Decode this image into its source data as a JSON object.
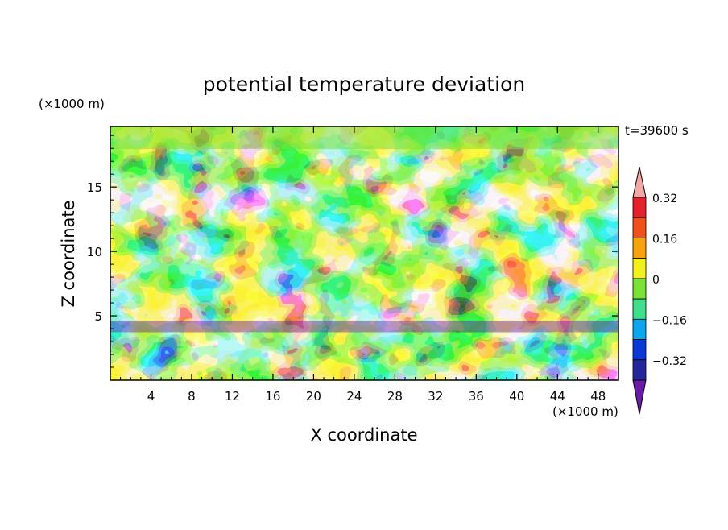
{
  "chart_data": {
    "type": "heatmap",
    "title": "potential temperature deviation",
    "xlabel": "X coordinate",
    "ylabel": "Z coordinate",
    "x_unit": "(×1000 m)",
    "y_unit": "(×1000 m)",
    "time_label": "t=39600 s",
    "xlim": [
      0,
      50
    ],
    "ylim": [
      0,
      19.7
    ],
    "x_ticks": [
      4,
      8,
      12,
      16,
      20,
      24,
      28,
      32,
      36,
      40,
      44,
      48
    ],
    "y_ticks": [
      5,
      10,
      15
    ],
    "colorbar": {
      "levels": [
        -0.4,
        -0.32,
        -0.24,
        -0.16,
        -0.08,
        0,
        0.08,
        0.16,
        0.24,
        0.32,
        0.4
      ],
      "labels": [
        "0.32",
        "0.16",
        "0",
        "−0.16",
        "−0.32"
      ],
      "label_values": [
        0.32,
        0.16,
        0,
        -0.16,
        -0.32
      ],
      "colors": [
        "#6a1ba6",
        "#27259c",
        "#0a37d8",
        "#0aa6f0",
        "#3fe08c",
        "#7ae235",
        "#f2f21a",
        "#f7a20a",
        "#f2501a",
        "#e8202b",
        "#f4a7a7"
      ],
      "extend": "both"
    }
  }
}
